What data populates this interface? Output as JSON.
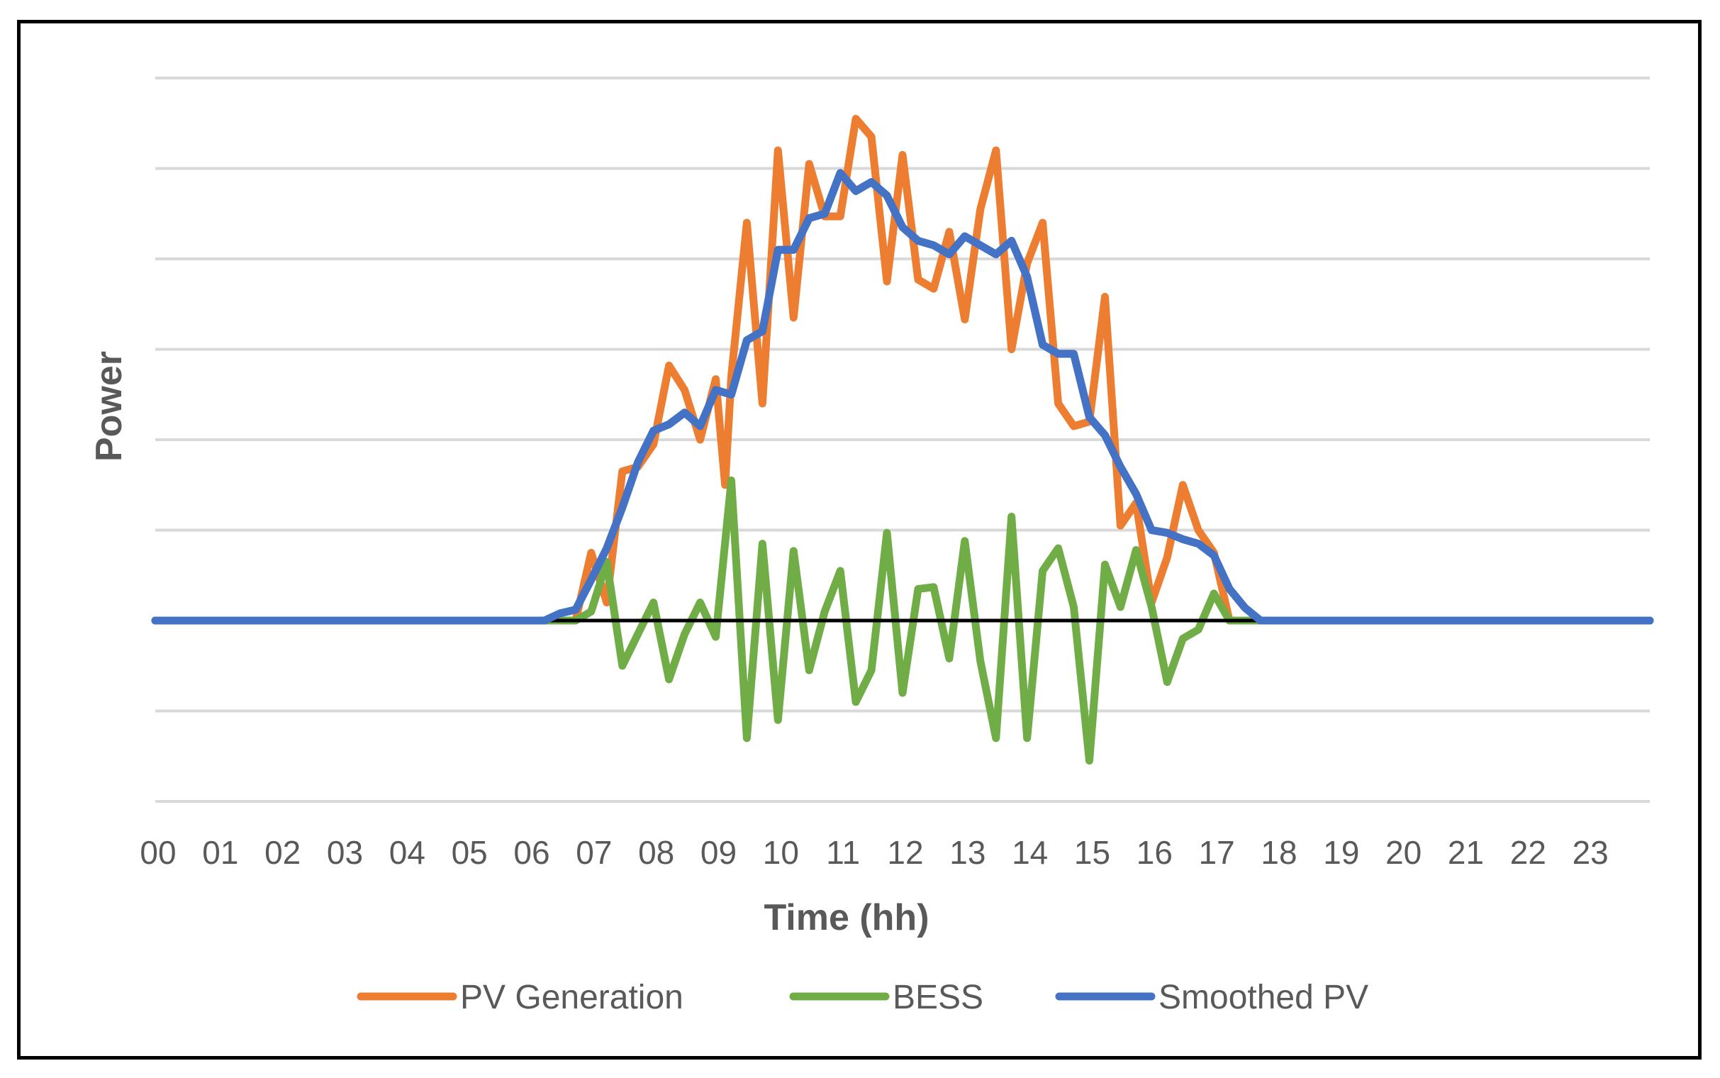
{
  "chart_data": {
    "type": "line",
    "title": "",
    "xlabel": "Time (hh)",
    "ylabel": "Power",
    "x_tick_labels": [
      "00",
      "01",
      "02",
      "03",
      "04",
      "05",
      "06",
      "07",
      "08",
      "09",
      "10",
      "11",
      "12",
      "13",
      "14",
      "15",
      "16",
      "17",
      "18",
      "19",
      "20",
      "21",
      "22",
      "23"
    ],
    "xlim": [
      0,
      24
    ],
    "ylim": [
      -2,
      6
    ],
    "y_gridlines": [
      -2,
      -1,
      0,
      1,
      2,
      3,
      4,
      5,
      6
    ],
    "y_tick_labels_visible": false,
    "grid": true,
    "legend_position": "bottom",
    "series": [
      {
        "name": "PV Generation",
        "color": "#ED7D31",
        "x": [
          0,
          6.25,
          6.75,
          7.0,
          7.25,
          7.5,
          7.75,
          8.0,
          8.25,
          8.5,
          8.75,
          9.0,
          9.15,
          9.25,
          9.5,
          9.75,
          10.0,
          10.25,
          10.5,
          10.75,
          11.0,
          11.25,
          11.5,
          11.75,
          12.0,
          12.25,
          12.5,
          12.75,
          13.0,
          13.25,
          13.5,
          13.75,
          14.0,
          14.25,
          14.5,
          14.75,
          15.0,
          15.25,
          15.5,
          15.75,
          16.0,
          16.25,
          16.5,
          16.75,
          17.0,
          17.25,
          17.5,
          17.75,
          24
        ],
        "y": [
          0,
          0,
          0,
          0.75,
          0.2,
          1.65,
          1.7,
          1.95,
          2.82,
          2.55,
          2.0,
          2.67,
          1.5,
          2.7,
          4.4,
          2.4,
          5.2,
          3.35,
          5.05,
          4.47,
          4.47,
          5.55,
          5.35,
          3.75,
          5.15,
          3.77,
          3.67,
          4.3,
          3.33,
          4.55,
          5.2,
          3.0,
          3.95,
          4.4,
          2.4,
          2.15,
          2.2,
          3.58,
          1.05,
          1.3,
          0.2,
          0.7,
          1.5,
          1.0,
          0.75,
          0,
          0,
          0,
          0
        ]
      },
      {
        "name": "BESS",
        "color": "#70AD47",
        "x": [
          0,
          6.75,
          7.0,
          7.25,
          7.5,
          7.75,
          8.0,
          8.25,
          8.5,
          8.75,
          9.0,
          9.25,
          9.5,
          9.75,
          10.0,
          10.25,
          10.5,
          10.75,
          11.0,
          11.25,
          11.5,
          11.75,
          12.0,
          12.25,
          12.5,
          12.75,
          13.0,
          13.25,
          13.5,
          13.75,
          14.0,
          14.25,
          14.5,
          14.75,
          15.0,
          15.25,
          15.5,
          15.75,
          16.0,
          16.25,
          16.5,
          16.75,
          17.0,
          17.25,
          17.5,
          24
        ],
        "y": [
          0,
          0,
          0.1,
          0.65,
          -0.5,
          -0.15,
          0.2,
          -0.65,
          -0.15,
          0.2,
          -0.18,
          1.55,
          -1.3,
          0.85,
          -1.1,
          0.77,
          -0.55,
          0.1,
          0.55,
          -0.9,
          -0.55,
          0.97,
          -0.8,
          0.35,
          0.37,
          -0.42,
          0.88,
          -0.45,
          -1.3,
          1.15,
          -1.3,
          0.55,
          0.8,
          0.15,
          -1.55,
          0.62,
          0.15,
          0.78,
          0.15,
          -0.68,
          -0.2,
          -0.1,
          0.3,
          0,
          0,
          0
        ]
      },
      {
        "name": "Smoothed PV",
        "color": "#4472C4",
        "x": [
          0,
          6.25,
          6.5,
          6.75,
          7.0,
          7.25,
          7.5,
          7.75,
          8.0,
          8.25,
          8.5,
          8.75,
          9.0,
          9.25,
          9.5,
          9.75,
          10.0,
          10.25,
          10.5,
          10.75,
          11.0,
          11.25,
          11.5,
          11.75,
          12.0,
          12.25,
          12.5,
          12.75,
          13.0,
          13.25,
          13.5,
          13.75,
          14.0,
          14.25,
          14.5,
          14.75,
          15.0,
          15.25,
          15.5,
          15.75,
          16.0,
          16.25,
          16.5,
          16.75,
          17.0,
          17.25,
          17.5,
          17.75,
          24
        ],
        "y": [
          0,
          0,
          0.08,
          0.12,
          0.45,
          0.8,
          1.25,
          1.75,
          2.1,
          2.17,
          2.3,
          2.15,
          2.55,
          2.5,
          3.1,
          3.2,
          4.1,
          4.1,
          4.45,
          4.5,
          4.95,
          4.75,
          4.85,
          4.7,
          4.35,
          4.2,
          4.15,
          4.05,
          4.25,
          4.15,
          4.05,
          4.2,
          3.8,
          3.05,
          2.95,
          2.95,
          2.25,
          2.05,
          1.7,
          1.4,
          1.0,
          0.97,
          0.9,
          0.85,
          0.72,
          0.35,
          0.14,
          0,
          0
        ]
      }
    ]
  }
}
